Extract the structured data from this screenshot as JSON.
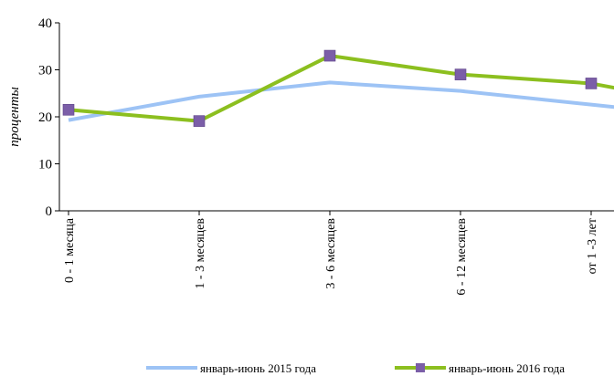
{
  "chart_data": {
    "type": "line",
    "title": "",
    "xlabel": "",
    "ylabel": "проценты",
    "ylim": [
      0,
      40
    ],
    "yticks": [
      0,
      10,
      20,
      30,
      40
    ],
    "grid": false,
    "legend_position": "bottom",
    "categories": [
      "0 - 1 месяца",
      "1 - 3 месяцев",
      "3 - 6 месяцев",
      "6 - 12 месяцев",
      "от 1 -3 лет"
    ],
    "series": [
      {
        "name": "январь-июнь 2015 года",
        "color": "#9dc3f5",
        "marker": "none",
        "values": [
          19.3,
          24.3,
          27.3,
          25.5,
          22.6
        ]
      },
      {
        "name": "январь-июнь 2016 года",
        "color": "#8cbf1f",
        "marker": "square",
        "marker_color": "#7b5ea8",
        "values": [
          21.5,
          19.1,
          33.0,
          29.0,
          27.1
        ]
      }
    ]
  }
}
